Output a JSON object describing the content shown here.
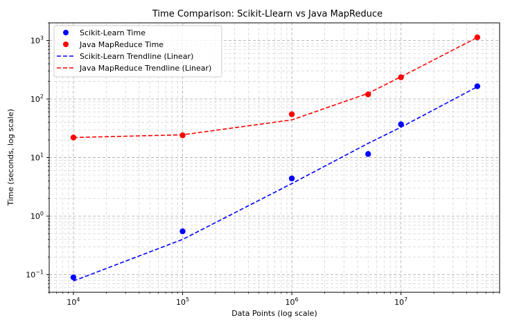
{
  "chart_data": {
    "type": "scatter",
    "title": "Time Comparison: Scikit-Llearn vs Java MapReduce",
    "xlabel": "Data Points (log scale)",
    "ylabel": "Time (seconds, log scale)",
    "xscale": "log",
    "yscale": "log",
    "xlim": [
      6000,
      80000000
    ],
    "ylim": [
      0.05,
      2000
    ],
    "x_ticks": [
      {
        "value": 10000,
        "base": "10",
        "exp": "4"
      },
      {
        "value": 100000,
        "base": "10",
        "exp": "5"
      },
      {
        "value": 1000000,
        "base": "10",
        "exp": "6"
      },
      {
        "value": 10000000,
        "base": "10",
        "exp": "7"
      }
    ],
    "y_ticks": [
      {
        "value": 0.1,
        "base": "10",
        "exp": "−1"
      },
      {
        "value": 1,
        "base": "10",
        "exp": "0"
      },
      {
        "value": 10,
        "base": "10",
        "exp": "1"
      },
      {
        "value": 100,
        "base": "10",
        "exp": "2"
      },
      {
        "value": 1000,
        "base": "10",
        "exp": "3"
      }
    ],
    "grid": true,
    "legend_position": "top-left",
    "series": [
      {
        "name": "Scikit-Learn Time",
        "kind": "scatter",
        "color": "#0000ff",
        "x": [
          10000,
          100000,
          1000000,
          5000000,
          10000000,
          50000000
        ],
        "y": [
          0.09,
          0.55,
          4.4,
          11.5,
          37,
          165
        ]
      },
      {
        "name": "Java MapReduce Time",
        "kind": "scatter",
        "color": "#ff0000",
        "x": [
          10000,
          100000,
          1000000,
          5000000,
          10000000,
          50000000
        ],
        "y": [
          22,
          24,
          55,
          120,
          235,
          1130
        ]
      },
      {
        "name": "Scikit-Learn Trendline (Linear)",
        "kind": "dashed-line",
        "color": "#0000ff",
        "x": [
          10000,
          100000,
          1000000,
          5000000,
          10000000,
          50000000
        ],
        "y": [
          0.078,
          0.4,
          3.6,
          17.5,
          33,
          162
        ]
      },
      {
        "name": "Java MapReduce Trendline (Linear)",
        "kind": "dashed-line",
        "color": "#ff0000",
        "x": [
          10000,
          100000,
          1000000,
          5000000,
          10000000,
          50000000
        ],
        "y": [
          22,
          24.5,
          44,
          125,
          240,
          1125
        ]
      }
    ]
  }
}
